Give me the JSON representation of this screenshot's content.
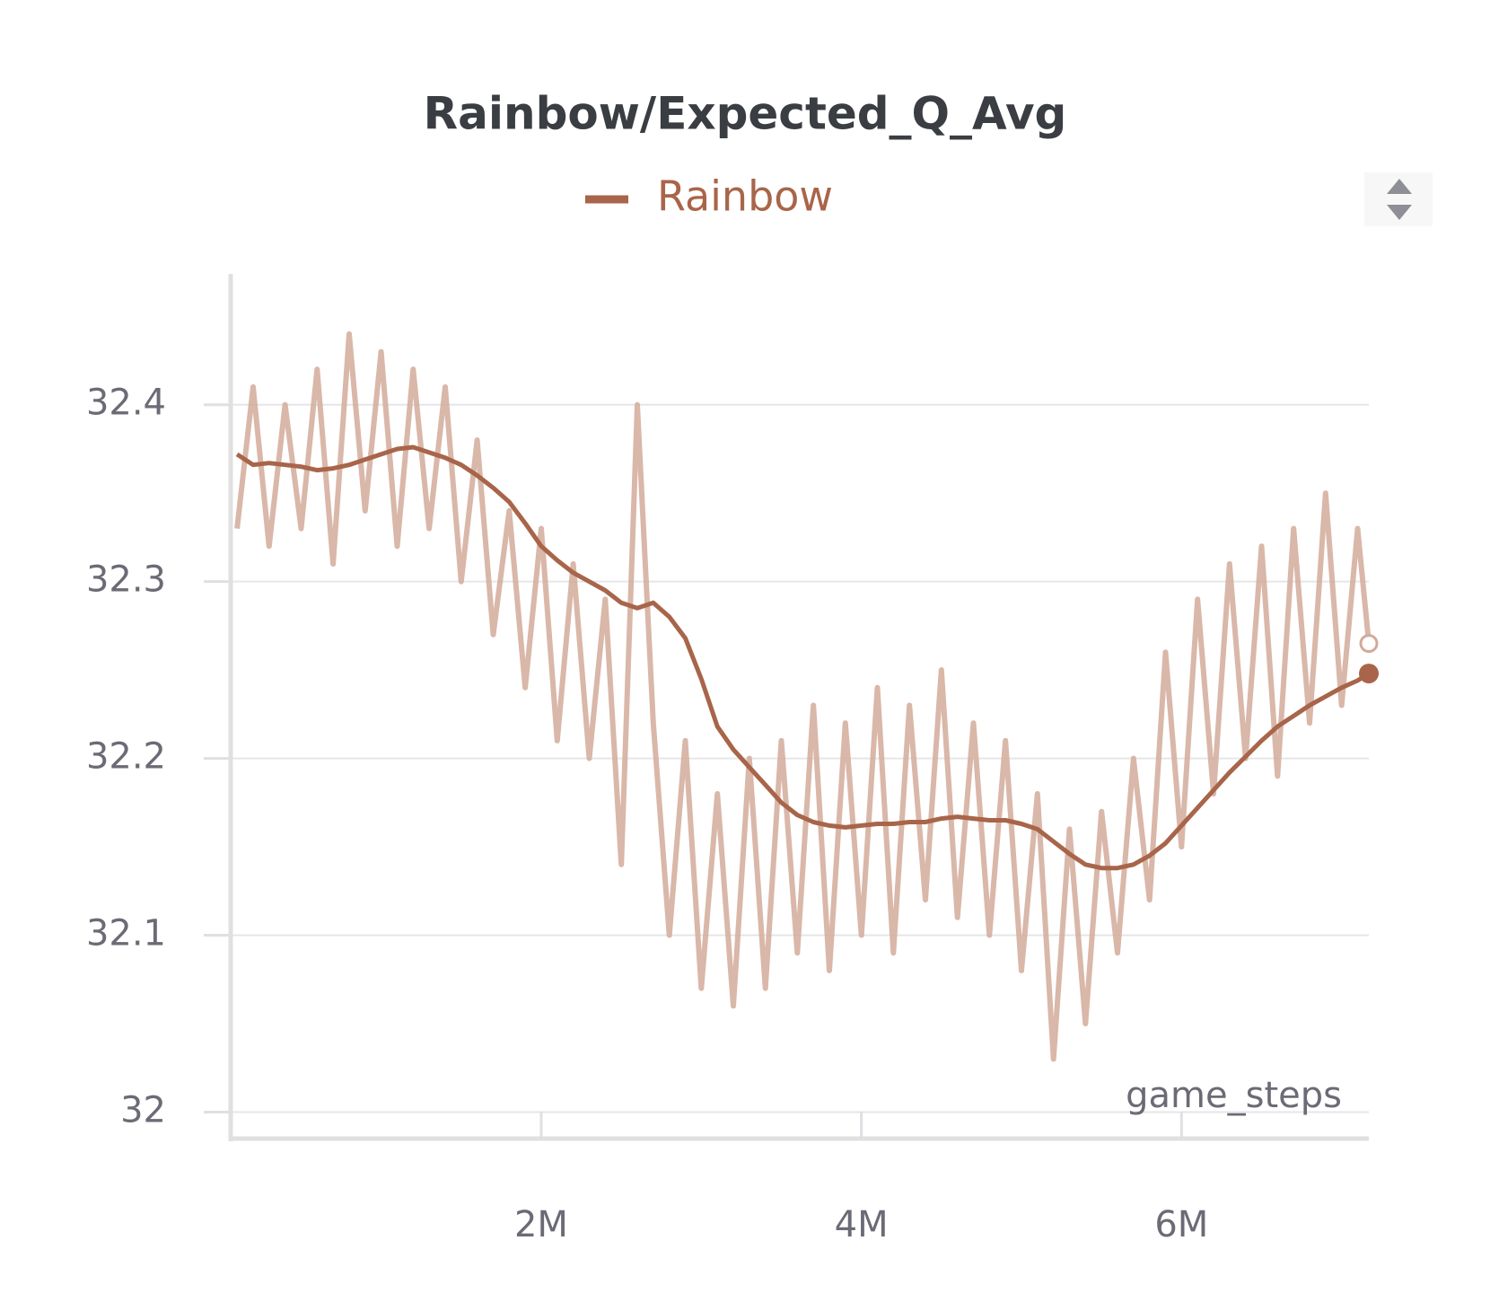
{
  "chart_data": {
    "type": "line",
    "title": "Rainbow/Expected_Q_Avg",
    "x_label": "game_steps",
    "x": [
      100000,
      200000,
      300000,
      400000,
      500000,
      600000,
      700000,
      800000,
      900000,
      1000000,
      1100000,
      1200000,
      1300000,
      1400000,
      1500000,
      1600000,
      1700000,
      1800000,
      1900000,
      2000000,
      2100000,
      2200000,
      2300000,
      2400000,
      2500000,
      2600000,
      2700000,
      2800000,
      2900000,
      3000000,
      3100000,
      3200000,
      3300000,
      3400000,
      3500000,
      3600000,
      3700000,
      3800000,
      3900000,
      4000000,
      4100000,
      4200000,
      4300000,
      4400000,
      4500000,
      4600000,
      4700000,
      4800000,
      4900000,
      5000000,
      5100000,
      5200000,
      5300000,
      5400000,
      5500000,
      5600000,
      5700000,
      5800000,
      5900000,
      6000000,
      6100000,
      6200000,
      6300000,
      6400000,
      6500000,
      6600000,
      6700000,
      6800000,
      6900000,
      7000000,
      7100000,
      7170000
    ],
    "series": [
      {
        "name": "Rainbow",
        "color": "#a8654a",
        "raw_color": "#d2aa9a",
        "values": [
          32.372,
          32.366,
          32.367,
          32.366,
          32.365,
          32.363,
          32.364,
          32.366,
          32.369,
          32.372,
          32.375,
          32.376,
          32.373,
          32.37,
          32.366,
          32.36,
          32.353,
          32.345,
          32.333,
          32.32,
          32.312,
          32.305,
          32.3,
          32.295,
          32.288,
          32.285,
          32.288,
          32.28,
          32.268,
          32.245,
          32.218,
          32.205,
          32.195,
          32.185,
          32.175,
          32.168,
          32.164,
          32.162,
          32.161,
          32.162,
          32.163,
          32.163,
          32.164,
          32.164,
          32.166,
          32.167,
          32.166,
          32.165,
          32.165,
          32.163,
          32.16,
          32.153,
          32.146,
          32.14,
          32.138,
          32.138,
          32.14,
          32.145,
          32.152,
          32.162,
          32.172,
          32.182,
          32.192,
          32.201,
          32.21,
          32.218,
          32.224,
          32.23,
          32.235,
          32.24,
          32.244,
          32.248
        ],
        "raw_values": [
          32.33,
          32.41,
          32.32,
          32.4,
          32.33,
          32.42,
          32.31,
          32.44,
          32.34,
          32.43,
          32.32,
          32.42,
          32.33,
          32.41,
          32.3,
          32.38,
          32.27,
          32.34,
          32.24,
          32.33,
          32.21,
          32.31,
          32.2,
          32.29,
          32.14,
          32.4,
          32.22,
          32.1,
          32.21,
          32.07,
          32.18,
          32.06,
          32.2,
          32.07,
          32.21,
          32.09,
          32.23,
          32.08,
          32.22,
          32.1,
          32.24,
          32.09,
          32.23,
          32.12,
          32.25,
          32.11,
          32.22,
          32.1,
          32.21,
          32.08,
          32.18,
          32.03,
          32.16,
          32.05,
          32.17,
          32.09,
          32.2,
          32.12,
          32.26,
          32.15,
          32.29,
          32.18,
          32.31,
          32.2,
          32.32,
          32.19,
          32.33,
          32.22,
          32.35,
          32.23,
          32.33,
          32.265
        ]
      }
    ],
    "xlim": [
      60000,
      7170000
    ],
    "ylim": [
      31.985,
      32.474
    ],
    "xticks": [
      {
        "value": 2000000,
        "label": "2M"
      },
      {
        "value": 4000000,
        "label": "4M"
      },
      {
        "value": 6000000,
        "label": "6M"
      }
    ],
    "yticks": [
      32,
      32.1,
      32.2,
      32.3,
      32.4
    ],
    "grid": true
  }
}
